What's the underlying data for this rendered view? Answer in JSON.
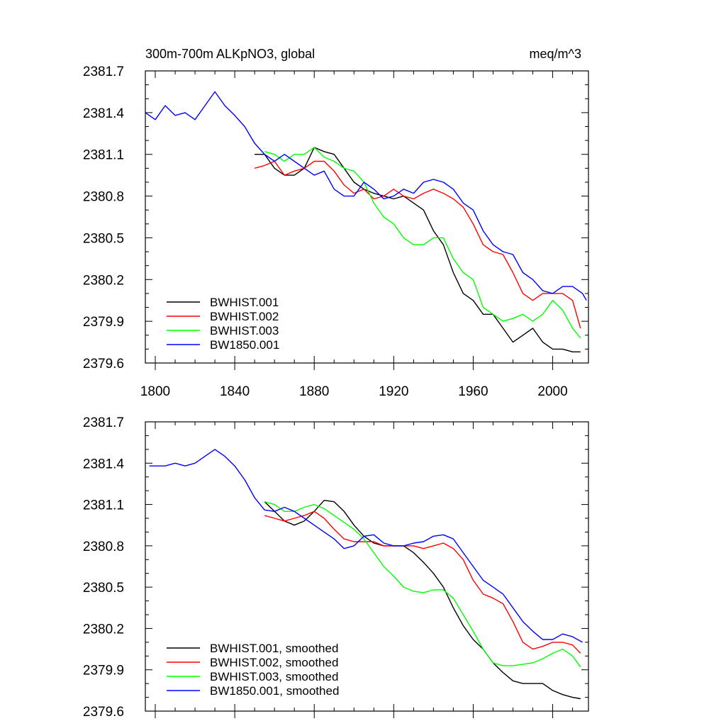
{
  "chart_data": [
    {
      "type": "line",
      "title": "300m-700m ALKpNO3, global",
      "units": "meq/m^3",
      "xlim": [
        1795,
        2018
      ],
      "ylim": [
        2379.6,
        2381.7
      ],
      "xticks": [
        1800,
        1840,
        1880,
        1920,
        1960,
        2000
      ],
      "xtick_labels": [
        "1800",
        "1840",
        "1880",
        "1920",
        "1960",
        "2000"
      ],
      "yticks": [
        2379.6,
        2379.9,
        2380.2,
        2380.5,
        2380.8,
        2381.1,
        2381.4,
        2381.7
      ],
      "ytick_labels": [
        "2379.6",
        "2379.9",
        "2380.2",
        "2380.5",
        "2380.8",
        "2381.1",
        "2381.4",
        "2381.7"
      ],
      "legend_position": "bottom-left",
      "series": [
        {
          "name": "BWHIST.001",
          "color": "#000000",
          "x": [
            1850,
            1855,
            1860,
            1865,
            1870,
            1875,
            1880,
            1885,
            1890,
            1895,
            1900,
            1905,
            1910,
            1915,
            1920,
            1925,
            1930,
            1935,
            1940,
            1945,
            1950,
            1955,
            1960,
            1965,
            1970,
            1975,
            1980,
            1985,
            1990,
            1995,
            2000,
            2005,
            2010,
            2014
          ],
          "y": [
            2381.1,
            2381.1,
            2381.0,
            2380.95,
            2380.95,
            2381.0,
            2381.15,
            2381.12,
            2381.1,
            2381.0,
            2380.9,
            2380.85,
            2380.82,
            2380.8,
            2380.78,
            2380.8,
            2380.75,
            2380.7,
            2380.55,
            2380.45,
            2380.25,
            2380.1,
            2380.05,
            2379.95,
            2379.95,
            2379.85,
            2379.75,
            2379.8,
            2379.85,
            2379.75,
            2379.7,
            2379.7,
            2379.68,
            2379.68
          ]
        },
        {
          "name": "BWHIST.002",
          "color": "#ff0000",
          "x": [
            1850,
            1855,
            1860,
            1865,
            1870,
            1875,
            1880,
            1885,
            1890,
            1895,
            1900,
            1905,
            1910,
            1915,
            1920,
            1925,
            1930,
            1935,
            1940,
            1945,
            1950,
            1955,
            1960,
            1965,
            1970,
            1975,
            1980,
            1985,
            1990,
            1995,
            2000,
            2005,
            2010,
            2014
          ],
          "y": [
            2381.0,
            2381.02,
            2381.05,
            2380.95,
            2380.98,
            2381.0,
            2381.05,
            2381.05,
            2380.98,
            2380.88,
            2380.82,
            2380.85,
            2380.78,
            2380.8,
            2380.85,
            2380.8,
            2380.78,
            2380.82,
            2380.85,
            2380.82,
            2380.78,
            2380.72,
            2380.6,
            2380.45,
            2380.4,
            2380.38,
            2380.25,
            2380.1,
            2380.05,
            2380.1,
            2380.1,
            2380.1,
            2380.05,
            2379.85
          ]
        },
        {
          "name": "BWHIST.003",
          "color": "#00ff00",
          "x": [
            1855,
            1860,
            1865,
            1870,
            1875,
            1880,
            1885,
            1890,
            1895,
            1900,
            1905,
            1910,
            1915,
            1920,
            1925,
            1930,
            1935,
            1940,
            1945,
            1950,
            1955,
            1960,
            1965,
            1970,
            1975,
            1980,
            1985,
            1990,
            1995,
            2000,
            2005,
            2010,
            2014
          ],
          "y": [
            2381.12,
            2381.1,
            2381.05,
            2381.1,
            2381.1,
            2381.15,
            2381.08,
            2381.05,
            2381.0,
            2380.98,
            2380.9,
            2380.75,
            2380.65,
            2380.6,
            2380.5,
            2380.45,
            2380.45,
            2380.5,
            2380.5,
            2380.35,
            2380.25,
            2380.2,
            2380.0,
            2379.95,
            2379.9,
            2379.92,
            2379.95,
            2379.9,
            2379.95,
            2380.05,
            2379.98,
            2379.85,
            2379.78
          ]
        },
        {
          "name": "BW1850.001",
          "color": "#0000ff",
          "x": [
            1795,
            1800,
            1805,
            1810,
            1815,
            1820,
            1825,
            1830,
            1835,
            1840,
            1845,
            1850,
            1855,
            1860,
            1865,
            1870,
            1875,
            1880,
            1885,
            1890,
            1895,
            1900,
            1905,
            1910,
            1915,
            1920,
            1925,
            1930,
            1935,
            1940,
            1945,
            1950,
            1955,
            1960,
            1965,
            1970,
            1975,
            1980,
            1985,
            1990,
            1995,
            2000,
            2005,
            2010,
            2015,
            2017
          ],
          "y": [
            2381.4,
            2381.35,
            2381.45,
            2381.38,
            2381.4,
            2381.35,
            2381.45,
            2381.55,
            2381.45,
            2381.38,
            2381.3,
            2381.18,
            2381.1,
            2381.05,
            2381.1,
            2381.05,
            2381.0,
            2380.95,
            2380.98,
            2380.85,
            2380.8,
            2380.8,
            2380.9,
            2380.85,
            2380.78,
            2380.8,
            2380.85,
            2380.82,
            2380.9,
            2380.92,
            2380.9,
            2380.85,
            2380.75,
            2380.7,
            2380.55,
            2380.45,
            2380.4,
            2380.38,
            2380.25,
            2380.2,
            2380.12,
            2380.1,
            2380.15,
            2380.15,
            2380.1,
            2380.05
          ]
        }
      ]
    },
    {
      "type": "line",
      "title": "",
      "units": "",
      "xlim": [
        1795,
        2018
      ],
      "ylim": [
        2379.6,
        2381.7
      ],
      "xticks": [
        1800,
        1840,
        1880,
        1920,
        1960,
        2000
      ],
      "xtick_labels": [
        "",
        "",
        "",
        "",
        "",
        ""
      ],
      "yticks": [
        2379.6,
        2379.9,
        2380.2,
        2380.5,
        2380.8,
        2381.1,
        2381.4,
        2381.7
      ],
      "ytick_labels": [
        "2379.6",
        "2379.9",
        "2380.2",
        "2380.5",
        "2380.8",
        "2381.1",
        "2381.4",
        "2381.7"
      ],
      "legend_position": "bottom-left",
      "series": [
        {
          "name": "BWHIST.001, smoothed",
          "color": "#000000",
          "x": [
            1855,
            1860,
            1865,
            1870,
            1875,
            1880,
            1885,
            1890,
            1895,
            1900,
            1905,
            1910,
            1915,
            1920,
            1925,
            1930,
            1935,
            1940,
            1945,
            1950,
            1955,
            1960,
            1965,
            1970,
            1975,
            1980,
            1985,
            1990,
            1995,
            2000,
            2005,
            2010,
            2014
          ],
          "y": [
            2381.12,
            2381.05,
            2380.98,
            2380.95,
            2380.98,
            2381.05,
            2381.13,
            2381.12,
            2381.05,
            2380.95,
            2380.87,
            2380.82,
            2380.8,
            2380.8,
            2380.8,
            2380.75,
            2380.68,
            2380.6,
            2380.5,
            2380.35,
            2380.22,
            2380.12,
            2380.05,
            2379.95,
            2379.88,
            2379.82,
            2379.8,
            2379.8,
            2379.8,
            2379.75,
            2379.72,
            2379.7,
            2379.69
          ]
        },
        {
          "name": "BWHIST.002, smoothed",
          "color": "#ff0000",
          "x": [
            1855,
            1860,
            1865,
            1870,
            1875,
            1880,
            1885,
            1890,
            1895,
            1900,
            1905,
            1910,
            1915,
            1920,
            1925,
            1930,
            1935,
            1940,
            1945,
            1950,
            1955,
            1960,
            1965,
            1970,
            1975,
            1980,
            1985,
            1990,
            1995,
            2000,
            2005,
            2010,
            2014
          ],
          "y": [
            2381.02,
            2381.0,
            2380.98,
            2381.0,
            2381.02,
            2381.05,
            2381.0,
            2380.92,
            2380.85,
            2380.83,
            2380.83,
            2380.83,
            2380.8,
            2380.8,
            2380.8,
            2380.8,
            2380.78,
            2380.8,
            2380.82,
            2380.78,
            2380.7,
            2380.55,
            2380.45,
            2380.42,
            2380.38,
            2380.25,
            2380.1,
            2380.05,
            2380.07,
            2380.1,
            2380.1,
            2380.08,
            2380.02
          ]
        },
        {
          "name": "BWHIST.003, smoothed",
          "color": "#00ff00",
          "x": [
            1855,
            1860,
            1865,
            1870,
            1875,
            1880,
            1885,
            1890,
            1895,
            1900,
            1905,
            1910,
            1915,
            1920,
            1925,
            1930,
            1935,
            1940,
            1945,
            1950,
            1955,
            1960,
            1965,
            1970,
            1975,
            1980,
            1985,
            1990,
            1995,
            2000,
            2005,
            2010,
            2014
          ],
          "y": [
            2381.12,
            2381.1,
            2381.05,
            2381.05,
            2381.08,
            2381.1,
            2381.07,
            2381.02,
            2380.97,
            2380.92,
            2380.85,
            2380.75,
            2380.65,
            2380.58,
            2380.5,
            2380.47,
            2380.46,
            2380.48,
            2380.48,
            2380.42,
            2380.3,
            2380.18,
            2380.05,
            2379.95,
            2379.93,
            2379.93,
            2379.94,
            2379.95,
            2379.98,
            2380.02,
            2380.05,
            2380.0,
            2379.92
          ]
        },
        {
          "name": "BW1850.001, smoothed",
          "color": "#0000ff",
          "x": [
            1797,
            1800,
            1805,
            1810,
            1815,
            1820,
            1825,
            1830,
            1835,
            1840,
            1845,
            1850,
            1855,
            1860,
            1865,
            1870,
            1875,
            1880,
            1885,
            1890,
            1895,
            1900,
            1905,
            1910,
            1915,
            1920,
            1925,
            1930,
            1935,
            1940,
            1945,
            1950,
            1955,
            1960,
            1965,
            1970,
            1975,
            1980,
            1985,
            1990,
            1995,
            2000,
            2005,
            2010,
            2015
          ],
          "y": [
            2381.38,
            2381.38,
            2381.38,
            2381.4,
            2381.38,
            2381.4,
            2381.45,
            2381.5,
            2381.45,
            2381.38,
            2381.28,
            2381.15,
            2381.06,
            2381.05,
            2381.08,
            2381.05,
            2381.0,
            2380.95,
            2380.9,
            2380.85,
            2380.78,
            2380.8,
            2380.87,
            2380.88,
            2380.82,
            2380.8,
            2380.8,
            2380.82,
            2380.83,
            2380.87,
            2380.88,
            2380.85,
            2380.75,
            2380.65,
            2380.55,
            2380.5,
            2380.45,
            2380.35,
            2380.25,
            2380.18,
            2380.12,
            2380.12,
            2380.16,
            2380.14,
            2380.1
          ]
        }
      ]
    }
  ]
}
